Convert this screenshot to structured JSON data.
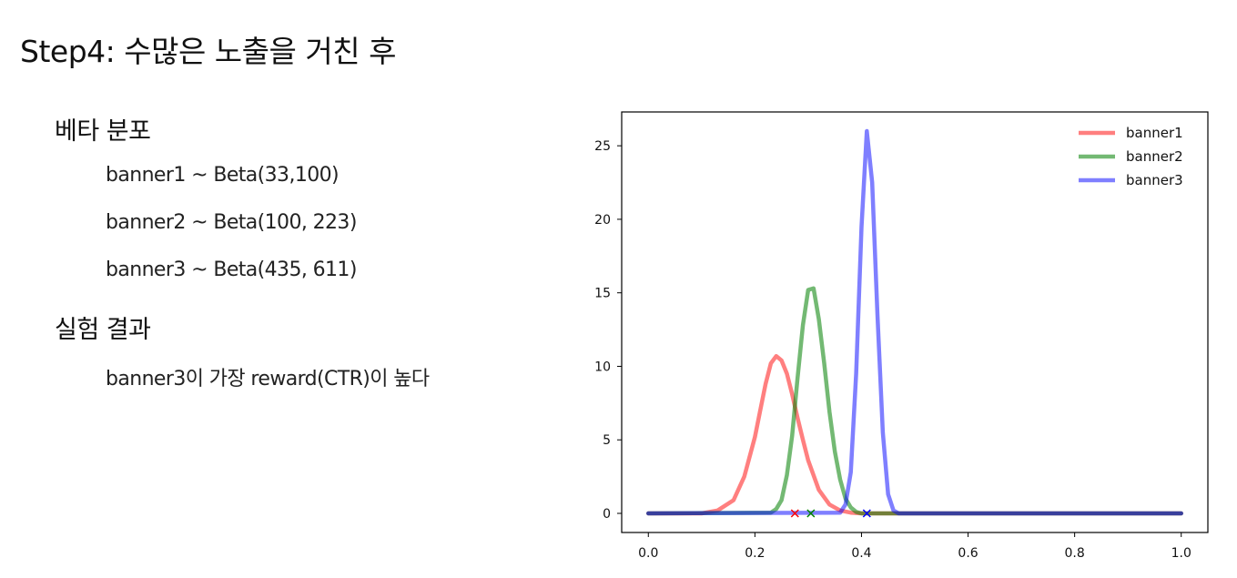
{
  "slide": {
    "title": "Step4: 수많은 노출을 거친 후",
    "section1": {
      "heading": "베타 분포",
      "items": [
        "banner1 ~ Beta(33,100)",
        "banner2 ~ Beta(100, 223)",
        "banner3 ~ Beta(435, 611)"
      ]
    },
    "section2": {
      "heading": "실험 결과",
      "items": [
        "banner3이 가장 reward(CTR)이 높다"
      ]
    }
  },
  "chart_data": {
    "type": "line",
    "title": "",
    "xlabel": "",
    "ylabel": "",
    "xlim": [
      -0.05,
      1.05
    ],
    "ylim": [
      -1.3,
      27.3
    ],
    "xticks": [
      "0.0",
      "0.2",
      "0.4",
      "0.6",
      "0.8",
      "1.0"
    ],
    "yticks": [
      "0",
      "5",
      "10",
      "15",
      "20",
      "25"
    ],
    "legend_position": "top-right",
    "grid": false,
    "series": [
      {
        "name": "banner1",
        "color": "#ff0000",
        "alpha": 0.5,
        "x": [
          0.0,
          0.1,
          0.13,
          0.16,
          0.18,
          0.2,
          0.21,
          0.22,
          0.23,
          0.24,
          0.25,
          0.26,
          0.27,
          0.28,
          0.29,
          0.3,
          0.32,
          0.34,
          0.36,
          0.38,
          0.4,
          1.0
        ],
        "values": [
          0.0,
          0.0,
          0.2,
          0.9,
          2.5,
          5.2,
          7.0,
          8.8,
          10.2,
          10.7,
          10.4,
          9.5,
          8.1,
          6.5,
          5.0,
          3.6,
          1.6,
          0.6,
          0.2,
          0.05,
          0.0,
          0.0
        ],
        "markers": [
          {
            "x": 0.275,
            "y": 0,
            "symbol": "x"
          }
        ]
      },
      {
        "name": "banner2",
        "color": "#008000",
        "alpha": 0.55,
        "x": [
          0.0,
          0.23,
          0.24,
          0.25,
          0.26,
          0.27,
          0.28,
          0.29,
          0.3,
          0.31,
          0.32,
          0.33,
          0.34,
          0.35,
          0.36,
          0.37,
          0.38,
          0.39,
          0.4,
          1.0
        ],
        "values": [
          0.0,
          0.05,
          0.3,
          0.9,
          2.6,
          5.3,
          9.2,
          12.8,
          15.2,
          15.3,
          13.2,
          10.2,
          6.9,
          4.2,
          2.3,
          1.0,
          0.4,
          0.1,
          0.0,
          0.0
        ],
        "markers": [
          {
            "x": 0.305,
            "y": 0,
            "symbol": "x"
          }
        ]
      },
      {
        "name": "banner3",
        "color": "#0000ff",
        "alpha": 0.5,
        "x": [
          0.0,
          0.36,
          0.37,
          0.38,
          0.39,
          0.4,
          0.41,
          0.42,
          0.43,
          0.44,
          0.45,
          0.46,
          0.47,
          1.0
        ],
        "values": [
          0.0,
          0.05,
          0.6,
          2.8,
          9.5,
          19.5,
          26.0,
          22.5,
          13.5,
          5.5,
          1.3,
          0.2,
          0.0,
          0.0
        ],
        "markers": [
          {
            "x": 0.41,
            "y": 0,
            "symbol": "x"
          }
        ]
      }
    ]
  }
}
